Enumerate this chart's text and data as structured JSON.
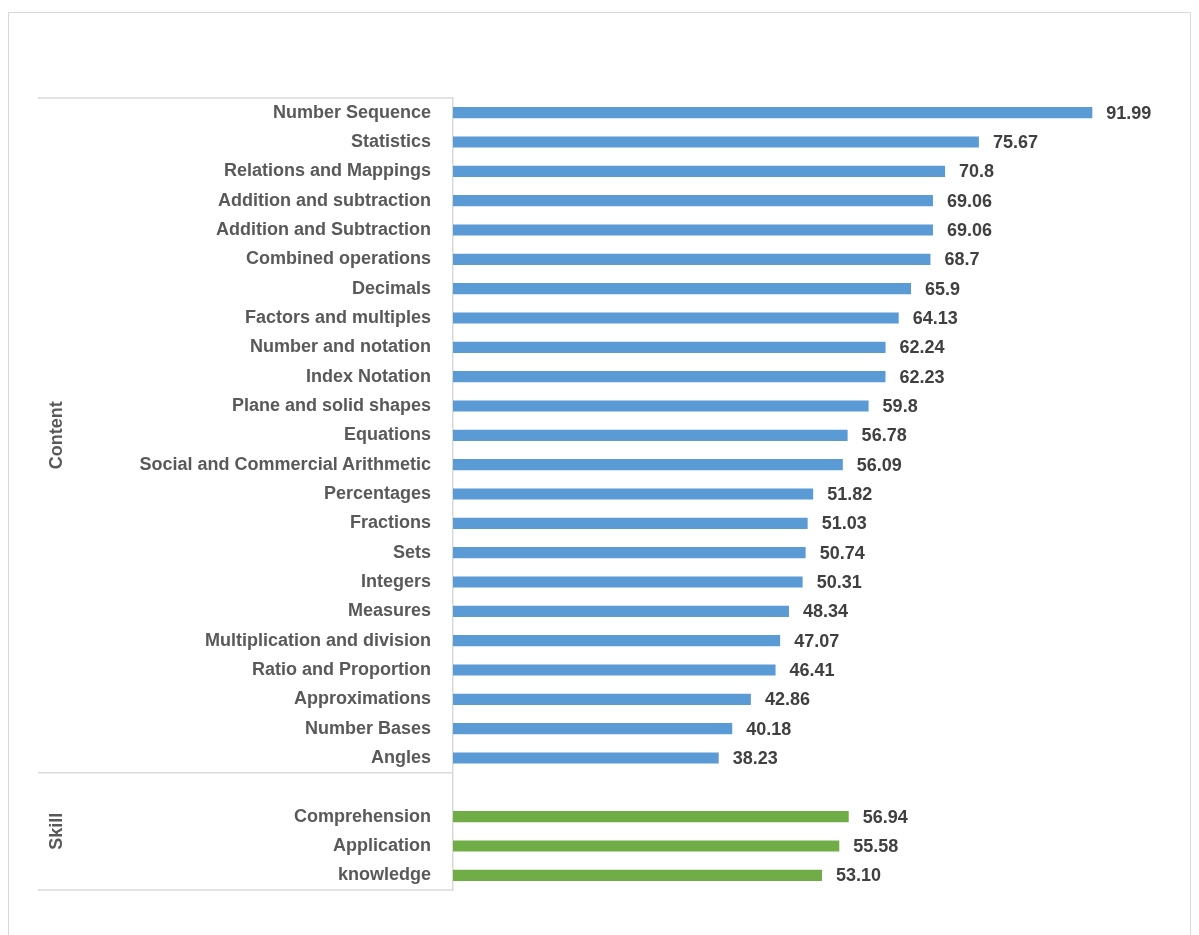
{
  "chart_data": {
    "type": "bar",
    "orientation": "horizontal",
    "categories": [
      "Number Sequence",
      "Statistics",
      "Relations and Mappings",
      "Addition and subtraction",
      "Addition and Subtraction",
      "Combined operations",
      "Decimals",
      "Factors and multiples",
      "Number and notation",
      "Index Notation",
      "Plane and solid shapes",
      "Equations",
      "Social and Commercial Arithmetic",
      "Percentages",
      "Fractions",
      "Sets",
      "Integers",
      "Measures",
      "Multiplication and division",
      "Ratio and Proportion",
      "Approximations",
      "Number Bases",
      "Angles",
      null,
      "Comprehension",
      "Application",
      "knowledge"
    ],
    "series": [
      {
        "color": "#5b9bd5",
        "values": [
          91.99,
          75.67,
          70.8,
          69.06,
          69.06,
          68.7,
          65.9,
          64.13,
          62.24,
          62.23,
          59.8,
          56.78,
          56.09,
          51.82,
          51.03,
          50.74,
          50.31,
          48.34,
          47.07,
          46.41,
          42.86,
          40.18,
          38.23,
          null,
          null,
          null,
          null
        ],
        "value_labels": [
          "91.99",
          "75.67",
          "70.8",
          "69.06",
          "69.06",
          "68.7",
          "65.9",
          "64.13",
          "62.24",
          "62.23",
          "59.8",
          "56.78",
          "56.09",
          "51.82",
          "51.03",
          "50.74",
          "50.31",
          "48.34",
          "47.07",
          "46.41",
          "42.86",
          "40.18",
          "38.23",
          null,
          null,
          null,
          null
        ]
      },
      {
        "color": "#70ad47",
        "values": [
          null,
          null,
          null,
          null,
          null,
          null,
          null,
          null,
          null,
          null,
          null,
          null,
          null,
          null,
          null,
          null,
          null,
          null,
          null,
          null,
          null,
          null,
          null,
          null,
          56.94,
          55.58,
          53.1
        ],
        "value_labels": [
          null,
          null,
          null,
          null,
          null,
          null,
          null,
          null,
          null,
          null,
          null,
          null,
          null,
          null,
          null,
          null,
          null,
          null,
          null,
          null,
          null,
          null,
          null,
          null,
          "56.94",
          "55.58",
          "53.10"
        ]
      }
    ],
    "tick_labels": "y",
    "annotations": [
      "Content",
      "Skill"
    ]
  }
}
